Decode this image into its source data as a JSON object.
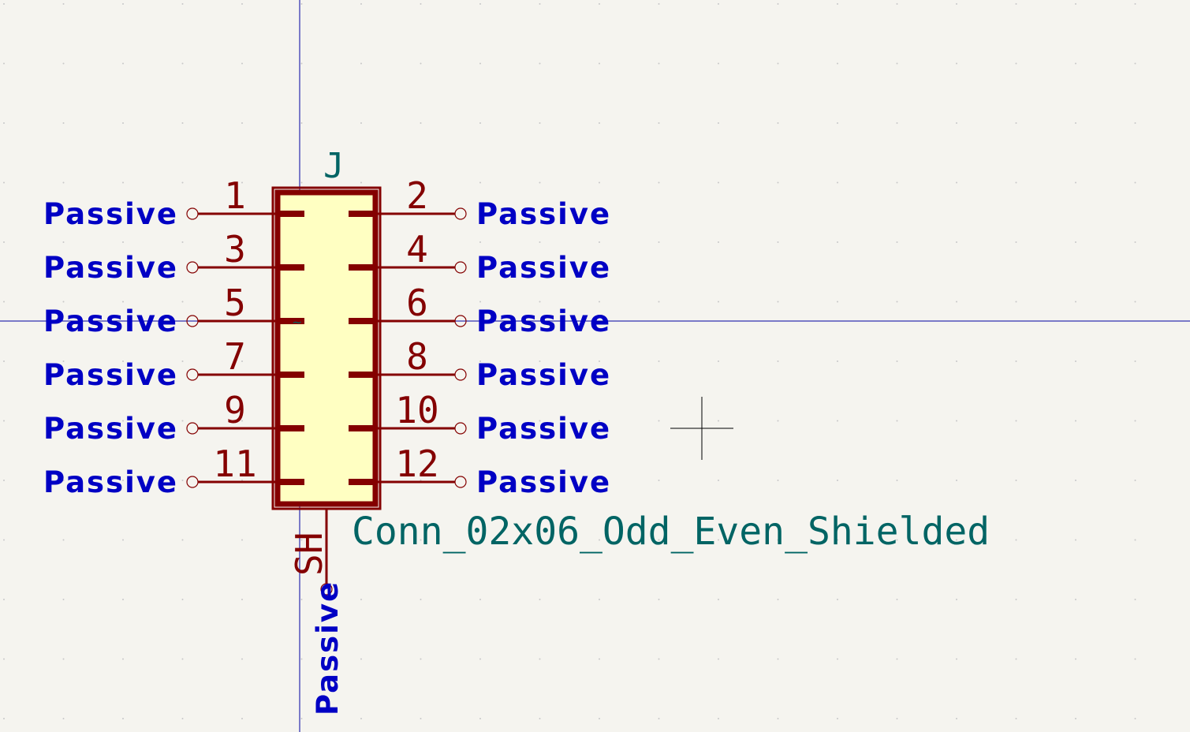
{
  "symbol": {
    "reference": "J",
    "value": "Conn_02x06_Odd_Even_Shielded",
    "left_pins": [
      {
        "number": "1",
        "type": "Passive"
      },
      {
        "number": "3",
        "type": "Passive"
      },
      {
        "number": "5",
        "type": "Passive"
      },
      {
        "number": "7",
        "type": "Passive"
      },
      {
        "number": "9",
        "type": "Passive"
      },
      {
        "number": "11",
        "type": "Passive"
      }
    ],
    "right_pins": [
      {
        "number": "2",
        "type": "Passive"
      },
      {
        "number": "4",
        "type": "Passive"
      },
      {
        "number": "6",
        "type": "Passive"
      },
      {
        "number": "8",
        "type": "Passive"
      },
      {
        "number": "10",
        "type": "Passive"
      },
      {
        "number": "12",
        "type": "Passive"
      }
    ],
    "bottom_pin": {
      "number": "SH",
      "type": "Passive"
    }
  },
  "colors": {
    "background": "#f5f4ef",
    "grid_dot": "#c8c8c8",
    "body_outline": "#840000",
    "body_fill": "#ffffc2",
    "pin_type_text": "#0000c4",
    "field_text": "#006464",
    "axis": "#0000a0"
  }
}
